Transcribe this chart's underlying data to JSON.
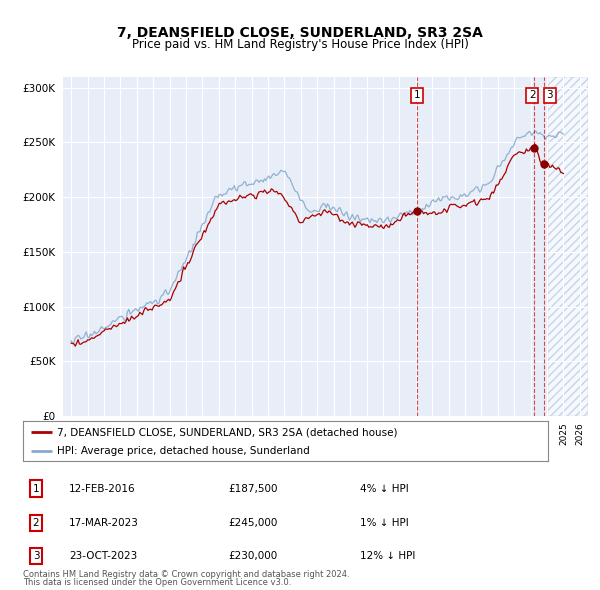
{
  "title": "7, DEANSFIELD CLOSE, SUNDERLAND, SR3 2SA",
  "subtitle": "Price paid vs. HM Land Registry's House Price Index (HPI)",
  "legend_property": "7, DEANSFIELD CLOSE, SUNDERLAND, SR3 2SA (detached house)",
  "legend_hpi": "HPI: Average price, detached house, Sunderland",
  "transactions": [
    {
      "label": "1",
      "date": "12-FEB-2016",
      "price": "£187,500",
      "hpi": "4% ↓ HPI",
      "year": 2016.1
    },
    {
      "label": "2",
      "date": "17-MAR-2023",
      "price": "£245,000",
      "hpi": "1% ↓ HPI",
      "year": 2023.21
    },
    {
      "label": "3",
      "date": "23-OCT-2023",
      "price": "£230,000",
      "hpi": "12% ↓ HPI",
      "year": 2023.81
    }
  ],
  "transaction_prices": [
    187500,
    245000,
    230000
  ],
  "footer1": "Contains HM Land Registry data © Crown copyright and database right 2024.",
  "footer2": "This data is licensed under the Open Government Licence v3.0.",
  "property_color": "#aa0000",
  "hpi_color": "#88aacc",
  "dot_color": "#880000",
  "yticks": [
    0,
    50000,
    100000,
    150000,
    200000,
    250000,
    300000
  ],
  "ylim": [
    0,
    310000
  ],
  "xlim_start": 1994.5,
  "xlim_end": 2026.5,
  "hatch_start": 2024.08,
  "background_color": "#e8eef8"
}
